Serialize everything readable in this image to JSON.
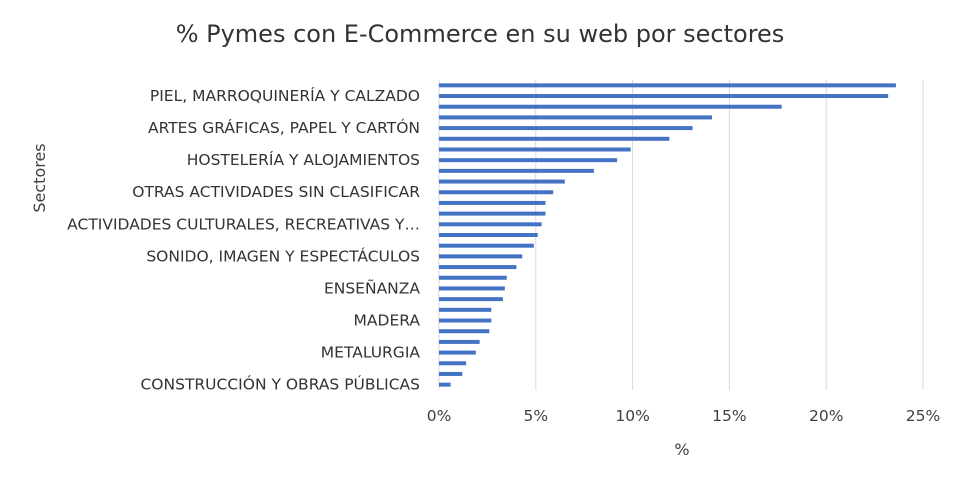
{
  "chart_data": {
    "type": "bar",
    "orientation": "horizontal",
    "title": "% Pymes con E-Commerce en su web por sectores",
    "xlabel": "%",
    "ylabel": "Sectores",
    "xlim": [
      0,
      25
    ],
    "x_ticks": [
      "0%",
      "5%",
      "10%",
      "15%",
      "20%",
      "25%"
    ],
    "grid": "vertical",
    "bar_color": "#4472C4",
    "visible_category_labels": [
      "PIEL, MARROQUINERÍA Y CALZADO",
      "ARTES GRÁFICAS, PAPEL Y CARTÓN",
      "HOSTELERÍA Y ALOJAMIENTOS",
      "OTRAS ACTIVIDADES SIN CLASIFICAR",
      "ACTIVIDADES CULTURALES, RECREATIVAS Y…",
      "SONIDO, IMAGEN Y ESPECTÁCULOS",
      "ENSEÑANZA",
      "MADERA",
      "METALURGIA",
      "CONSTRUCCIÓN Y OBRAS PÚBLICAS"
    ],
    "values": [
      23.6,
      23.2,
      17.7,
      14.1,
      13.1,
      11.9,
      9.9,
      9.2,
      8.0,
      6.5,
      5.9,
      5.5,
      5.5,
      5.3,
      5.1,
      4.9,
      4.3,
      4.0,
      3.5,
      3.4,
      3.3,
      2.7,
      2.7,
      2.6,
      2.1,
      1.9,
      1.4,
      1.2,
      0.6
    ]
  }
}
